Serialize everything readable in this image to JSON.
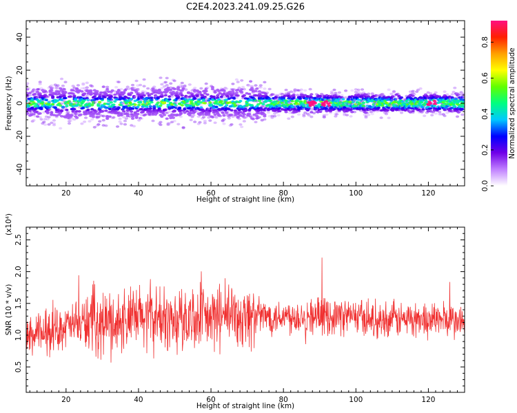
{
  "title": "C2E4.2023.241.09.25.G26",
  "chart_data": [
    {
      "type": "heatmap",
      "xlabel": "Height of straight line (km)",
      "ylabel": "Frequency (Hz)",
      "xlim": [
        9,
        130
      ],
      "ylim": [
        -50,
        50
      ],
      "xticks": [
        20,
        40,
        60,
        80,
        100,
        120
      ],
      "yticks": [
        40,
        20,
        0,
        -20,
        -40
      ],
      "colorbar": {
        "label": "Normalized spectral amplitude",
        "range": [
          0,
          0.92
        ],
        "ticks": [
          0.0,
          0.2,
          0.4,
          0.6,
          0.8
        ],
        "colors": [
          "#ffffff",
          "#c080ff",
          "#7000e8",
          "#0000ff",
          "#00c8ff",
          "#00ff80",
          "#60ff00",
          "#ffff00",
          "#ffa000",
          "#ff2000",
          "#ff1080"
        ]
      },
      "description_values": {
        "band_center_hz": 0,
        "band_halfwidth_hz": [
          3,
          8
        ],
        "peak_heights_km": [
          88,
          92,
          121
        ]
      }
    },
    {
      "type": "line",
      "xlabel": "Height of straight line (km)",
      "ylabel": "SNR (10 * v/v)",
      "multiplier": "(x10⁴)",
      "xlim": [
        9,
        130
      ],
      "ylim": [
        0.1,
        2.7
      ],
      "xticks": [
        20,
        40,
        60,
        80,
        100,
        120
      ],
      "yticks": [
        0.5,
        1.0,
        1.5,
        2.0,
        2.5
      ],
      "ytick_labels": [
        "0.5",
        "1.0",
        "1.5",
        "2.0",
        "2.5"
      ],
      "line_color": "#f03030",
      "series": [
        {
          "x": [
            9,
            12,
            15,
            18,
            20,
            22,
            25,
            27,
            30,
            33,
            35,
            38,
            40,
            43,
            46,
            50,
            53,
            55,
            58,
            60,
            63,
            66,
            69,
            72,
            75,
            78,
            80,
            84,
            88,
            92,
            96,
            100,
            104,
            108,
            112,
            116,
            120,
            124,
            128,
            130
          ],
          "y": [
            0.95,
            1.0,
            1.05,
            1.1,
            1.15,
            1.15,
            1.2,
            1.25,
            1.2,
            1.2,
            1.2,
            1.25,
            1.25,
            1.3,
            1.25,
            1.25,
            1.25,
            1.3,
            1.25,
            1.25,
            1.3,
            1.3,
            1.3,
            1.3,
            1.3,
            1.3,
            1.3,
            1.3,
            1.3,
            1.3,
            1.3,
            1.3,
            1.25,
            1.25,
            1.25,
            1.25,
            1.25,
            1.25,
            1.2,
            1.2
          ]
        }
      ]
    }
  ]
}
